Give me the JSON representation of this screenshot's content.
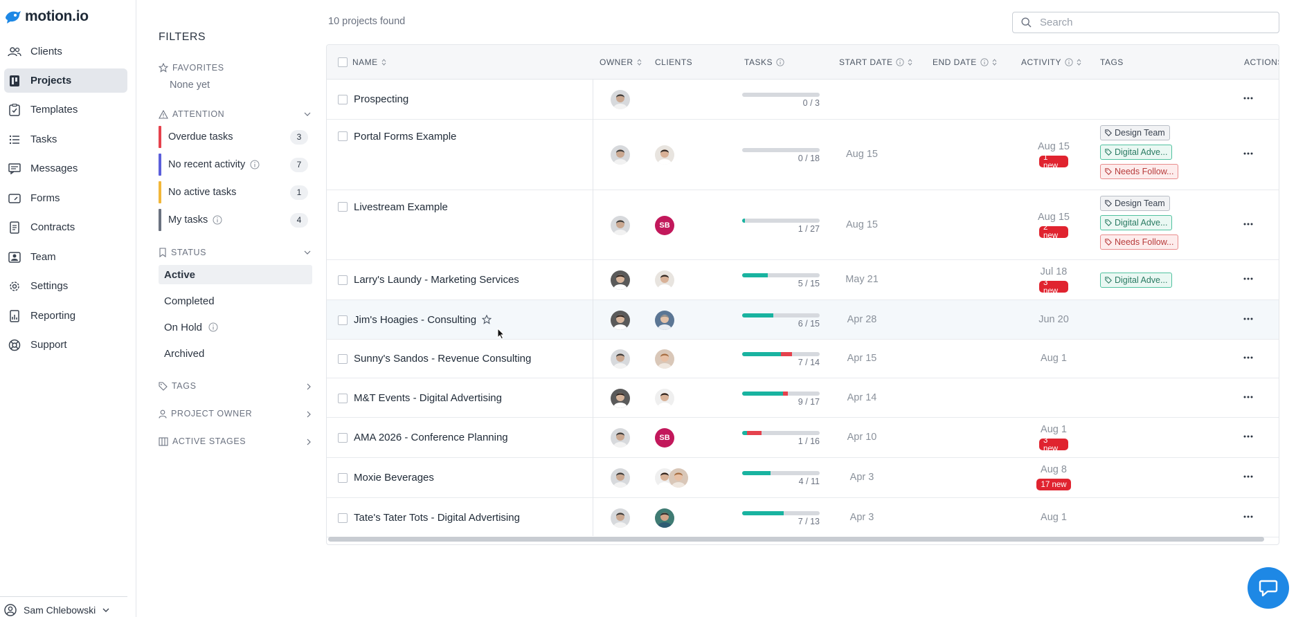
{
  "app": {
    "logo_text": "motion.io",
    "brand_color": "#1e88e5"
  },
  "nav": {
    "items": [
      {
        "label": "Clients",
        "icon": "users-icon"
      },
      {
        "label": "Projects",
        "icon": "projects-icon",
        "active": true
      },
      {
        "label": "Templates",
        "icon": "templates-icon"
      },
      {
        "label": "Tasks",
        "icon": "tasks-icon"
      },
      {
        "label": "Messages",
        "icon": "messages-icon"
      },
      {
        "label": "Forms",
        "icon": "forms-icon"
      },
      {
        "label": "Contracts",
        "icon": "contracts-icon"
      },
      {
        "label": "Team",
        "icon": "team-icon"
      },
      {
        "label": "Settings",
        "icon": "gear-icon"
      },
      {
        "label": "Reporting",
        "icon": "reporting-icon"
      },
      {
        "label": "Support",
        "icon": "support-icon"
      }
    ],
    "user_name": "Sam Chlebowski"
  },
  "filters": {
    "title": "FILTERS",
    "favorites": {
      "label": "FAVORITES",
      "empty_text": "None yet"
    },
    "attention": {
      "label": "ATTENTION",
      "items": [
        {
          "label": "Overdue tasks",
          "count": "3",
          "color": "#e5424d"
        },
        {
          "label": "No recent activity",
          "count": "7",
          "color": "#5b5fdb",
          "info": true
        },
        {
          "label": "No active tasks",
          "count": "1",
          "color": "#f2b73a"
        },
        {
          "label": "My tasks",
          "count": "4",
          "color": "#6b7280",
          "info": true
        }
      ]
    },
    "status": {
      "label": "STATUS",
      "items": [
        {
          "label": "Active",
          "active": true
        },
        {
          "label": "Completed"
        },
        {
          "label": "On Hold",
          "info": true
        },
        {
          "label": "Archived"
        }
      ]
    },
    "tags_label": "TAGS",
    "project_owner_label": "PROJECT OWNER",
    "active_stages_label": "ACTIVE STAGES"
  },
  "main": {
    "results_text": "10 projects found",
    "search_placeholder": "Search",
    "columns": {
      "name": "NAME",
      "owner": "OWNER",
      "clients": "CLIENTS",
      "tasks": "TASKS",
      "start_date": "START DATE",
      "end_date": "END DATE",
      "activity": "ACTIVITY",
      "tags": "TAGS",
      "actions": "ACTIONS"
    },
    "projects": [
      {
        "name": "Prospecting",
        "tasks_done": 0,
        "tasks_total": 3,
        "tasks_text": "0 / 3",
        "overdue": 0,
        "start": "",
        "activity": "",
        "new": "",
        "tags": [],
        "owner": "man",
        "clients": []
      },
      {
        "name": "Portal Forms Example",
        "tasks_done": 0,
        "tasks_total": 18,
        "tasks_text": "0 / 18",
        "overdue": 0,
        "start": "Aug 15",
        "activity": "Aug 15",
        "new": "1 new",
        "tags": [
          {
            "label": "Design Team",
            "kind": "gray"
          },
          {
            "label": "Digital Adve...",
            "kind": "green"
          },
          {
            "label": "Needs Follow...",
            "kind": "red"
          }
        ],
        "owner": "man",
        "clients": [
          "man2"
        ]
      },
      {
        "name": "Livestream Example",
        "tasks_done": 1,
        "tasks_total": 27,
        "tasks_text": "1 / 27",
        "overdue": 0,
        "start": "Aug 15",
        "activity": "Aug 15",
        "new": "2 new",
        "tags": [
          {
            "label": "Design Team",
            "kind": "gray"
          },
          {
            "label": "Digital Adve...",
            "kind": "green"
          },
          {
            "label": "Needs Follow...",
            "kind": "red"
          }
        ],
        "owner": "man",
        "clients": [
          "SB"
        ]
      },
      {
        "name": "Larry's Laundy - Marketing Services",
        "tasks_done": 5,
        "tasks_total": 15,
        "tasks_text": "5 / 15",
        "overdue": 0,
        "start": "May 21",
        "activity": "Jul 18",
        "new": "3 new",
        "tags": [
          {
            "label": "Digital Adve...",
            "kind": "green"
          }
        ],
        "owner": "woman",
        "clients": [
          "man2"
        ]
      },
      {
        "name": "Jim's Hoagies - Consulting",
        "star": true,
        "tasks_done": 6,
        "tasks_total": 15,
        "tasks_text": "6 / 15",
        "overdue": 0,
        "start": "Apr 28",
        "activity": "Jun 20",
        "new": "",
        "tags": [],
        "owner": "woman",
        "clients": [
          "man3"
        ]
      },
      {
        "name": "Sunny's Sandos - Revenue Consulting",
        "tasks_done": 7,
        "tasks_total": 14,
        "tasks_text": "7 / 14",
        "overdue": 2,
        "start": "Apr 15",
        "activity": "Aug 1",
        "new": "",
        "tags": [],
        "owner": "man",
        "clients": [
          "woman2"
        ]
      },
      {
        "name": "M&T Events - Digital Advertising",
        "tasks_done": 9,
        "tasks_total": 17,
        "tasks_text": "9 / 17",
        "overdue": 1,
        "start": "Apr 14",
        "activity": "",
        "new": "",
        "tags": [],
        "owner": "woman",
        "clients": [
          "woman3"
        ]
      },
      {
        "name": "AMA 2026 - Conference Planning",
        "tasks_done": 1,
        "tasks_total": 16,
        "tasks_text": "1 / 16",
        "overdue": 3,
        "start": "Apr 10",
        "activity": "Aug 1",
        "new": "3 new",
        "tags": [],
        "owner": "man",
        "clients": [
          "SB"
        ]
      },
      {
        "name": "Moxie Beverages",
        "tasks_done": 4,
        "tasks_total": 11,
        "tasks_text": "4 / 11",
        "overdue": 0,
        "start": "Apr 3",
        "activity": "Aug 8",
        "new": "17 new",
        "tags": [],
        "owner": "man",
        "clients": [
          "woman3",
          "woman2"
        ]
      },
      {
        "name": "Tate's Tater Tots - Digital Advertising",
        "tasks_done": 7,
        "tasks_total": 13,
        "tasks_text": "7 / 13",
        "overdue": 0,
        "start": "Apr 3",
        "activity": "Aug 1",
        "new": "",
        "tags": [],
        "owner": "man",
        "clients": [
          "man4"
        ]
      }
    ]
  }
}
